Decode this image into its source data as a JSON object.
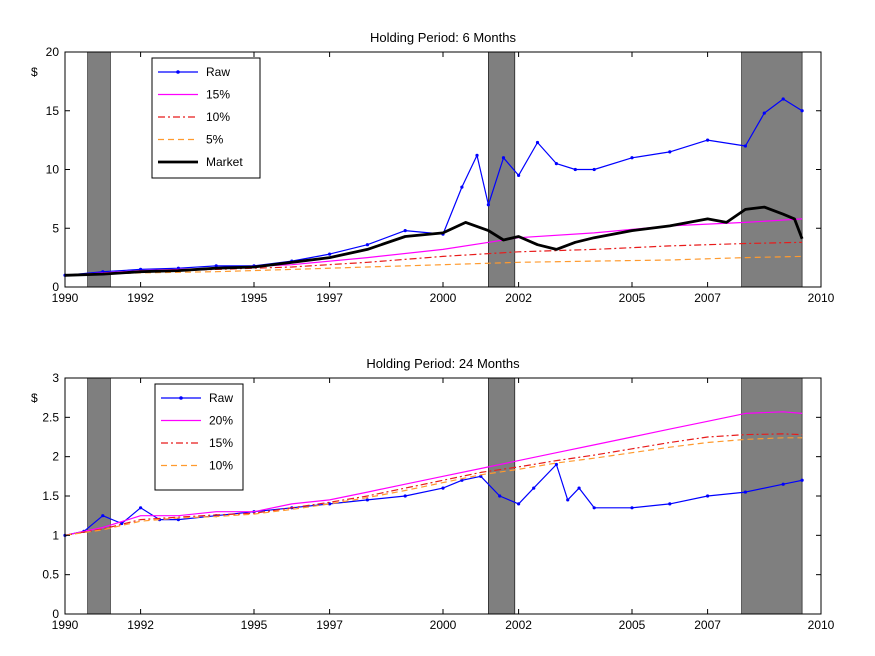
{
  "chart_data": [
    {
      "type": "line",
      "title": "Holding Period: 6 Months",
      "ylabel": "$",
      "xlabel": "",
      "xlim": [
        1990,
        2010
      ],
      "ylim": [
        0,
        20
      ],
      "x_ticks": [
        "1990",
        "1992",
        "1995",
        "1997",
        "2000",
        "2002",
        "2005",
        "2007",
        "2010"
      ],
      "y_ticks": [
        "0",
        "5",
        "10",
        "15",
        "20"
      ],
      "grid": false,
      "legend_position": "top-left",
      "recession_shading": [
        [
          1990.6,
          1991.2
        ],
        [
          2001.2,
          2001.9
        ],
        [
          2007.9,
          2009.5
        ]
      ],
      "series": [
        {
          "name": "Raw",
          "color": "#0000ff",
          "style": "solid-dot",
          "x": [
            1990,
            1991,
            1992,
            1993,
            1994,
            1995,
            1996,
            1997,
            1998,
            1999,
            2000,
            2000.5,
            2000.9,
            2001.2,
            2001.6,
            2002,
            2002.5,
            2003,
            2003.5,
            2004,
            2005,
            2006,
            2007,
            2008,
            2008.5,
            2009,
            2009.5
          ],
          "values": [
            1.0,
            1.3,
            1.5,
            1.6,
            1.8,
            1.8,
            2.2,
            2.8,
            3.6,
            4.8,
            4.5,
            8.5,
            11.2,
            7.0,
            11.0,
            9.5,
            12.3,
            10.5,
            10.0,
            10.0,
            11.0,
            11.5,
            12.5,
            12.0,
            14.8,
            16.0,
            15.0
          ]
        },
        {
          "name": "15%",
          "color": "#ff00ff",
          "style": "solid",
          "x": [
            1990,
            1992,
            1994,
            1996,
            1998,
            2000,
            2002,
            2004,
            2006,
            2008,
            2009.5
          ],
          "values": [
            1.0,
            1.4,
            1.6,
            1.9,
            2.5,
            3.2,
            4.2,
            4.6,
            5.2,
            5.5,
            5.8
          ]
        },
        {
          "name": "10%",
          "color": "#e81b1b",
          "style": "dashdot",
          "x": [
            1990,
            1992,
            1994,
            1996,
            1998,
            2000,
            2002,
            2004,
            2006,
            2008,
            2009.5
          ],
          "values": [
            1.0,
            1.3,
            1.5,
            1.7,
            2.1,
            2.6,
            3.0,
            3.2,
            3.5,
            3.7,
            3.8
          ]
        },
        {
          "name": "5%",
          "color": "#ff9a2e",
          "style": "dashed",
          "x": [
            1990,
            1992,
            1994,
            1996,
            1998,
            2000,
            2002,
            2004,
            2006,
            2008,
            2009.5
          ],
          "values": [
            1.0,
            1.2,
            1.3,
            1.5,
            1.7,
            1.9,
            2.1,
            2.2,
            2.3,
            2.5,
            2.6
          ]
        },
        {
          "name": "Market",
          "color": "#000000",
          "style": "thick",
          "x": [
            1990,
            1991,
            1992,
            1993,
            1994,
            1995,
            1996,
            1997,
            1998,
            1999,
            2000,
            2000.6,
            2001.2,
            2001.6,
            2002,
            2002.5,
            2003,
            2003.5,
            2004,
            2005,
            2006,
            2007,
            2007.5,
            2008,
            2008.5,
            2009,
            2009.3,
            2009.5
          ],
          "values": [
            1.0,
            1.1,
            1.3,
            1.4,
            1.6,
            1.7,
            2.1,
            2.5,
            3.2,
            4.3,
            4.6,
            5.5,
            4.8,
            4.0,
            4.3,
            3.6,
            3.2,
            3.8,
            4.2,
            4.8,
            5.2,
            5.8,
            5.5,
            6.6,
            6.8,
            6.2,
            5.8,
            4.1
          ]
        }
      ]
    },
    {
      "type": "line",
      "title": "Holding Period: 24 Months",
      "ylabel": "$",
      "xlabel": "",
      "xlim": [
        1990,
        2010
      ],
      "ylim": [
        0,
        3
      ],
      "x_ticks": [
        "1990",
        "1992",
        "1995",
        "1997",
        "2000",
        "2002",
        "2005",
        "2007",
        "2010"
      ],
      "y_ticks": [
        "0",
        "0.5",
        "1",
        "1.5",
        "2",
        "2.5",
        "3"
      ],
      "grid": false,
      "legend_position": "top-left",
      "recession_shading": [
        [
          1990.6,
          1991.2
        ],
        [
          2001.2,
          2001.9
        ],
        [
          2007.9,
          2009.5
        ]
      ],
      "series": [
        {
          "name": "Raw",
          "color": "#0000ff",
          "style": "solid-dot",
          "x": [
            1990,
            1990.5,
            1991,
            1991.5,
            1992,
            1992.5,
            1993,
            1994,
            1995,
            1996,
            1997,
            1998,
            1999,
            2000,
            2000.5,
            2001,
            2001.5,
            2002,
            2002.4,
            2003,
            2003.3,
            2003.6,
            2004,
            2005,
            2006,
            2007,
            2008,
            2009,
            2009.5
          ],
          "values": [
            1.0,
            1.05,
            1.25,
            1.15,
            1.35,
            1.2,
            1.2,
            1.25,
            1.3,
            1.35,
            1.4,
            1.45,
            1.5,
            1.6,
            1.7,
            1.75,
            1.5,
            1.4,
            1.6,
            1.9,
            1.45,
            1.6,
            1.35,
            1.35,
            1.4,
            1.5,
            1.55,
            1.65,
            1.7
          ]
        },
        {
          "name": "20%",
          "color": "#ff00ff",
          "style": "solid",
          "x": [
            1990,
            1991,
            1992,
            1993,
            1994,
            1995,
            1996,
            1997,
            1998,
            1999,
            2000,
            2001,
            2002,
            2003,
            2004,
            2005,
            2006,
            2007,
            2008,
            2009,
            2009.5
          ],
          "values": [
            1.0,
            1.1,
            1.25,
            1.25,
            1.3,
            1.3,
            1.4,
            1.45,
            1.55,
            1.65,
            1.75,
            1.85,
            1.95,
            2.05,
            2.15,
            2.25,
            2.35,
            2.45,
            2.55,
            2.57,
            2.55
          ]
        },
        {
          "name": "15%",
          "color": "#e81b1b",
          "style": "dashdot",
          "x": [
            1990,
            1991,
            1992,
            1993,
            1994,
            1995,
            1996,
            1997,
            1998,
            1999,
            2000,
            2001,
            2002,
            2003,
            2004,
            2005,
            2006,
            2007,
            2008,
            2009,
            2009.5
          ],
          "values": [
            1.0,
            1.08,
            1.2,
            1.23,
            1.26,
            1.28,
            1.35,
            1.42,
            1.5,
            1.6,
            1.7,
            1.8,
            1.87,
            1.95,
            2.02,
            2.1,
            2.18,
            2.25,
            2.28,
            2.29,
            2.28
          ]
        },
        {
          "name": "10%",
          "color": "#ff9a2e",
          "style": "dashed",
          "x": [
            1990,
            1991,
            1992,
            1993,
            1994,
            1995,
            1996,
            1997,
            1998,
            1999,
            2000,
            2001,
            2002,
            2003,
            2004,
            2005,
            2006,
            2007,
            2008,
            2009,
            2009.5
          ],
          "values": [
            1.0,
            1.07,
            1.18,
            1.22,
            1.24,
            1.27,
            1.33,
            1.4,
            1.48,
            1.57,
            1.67,
            1.77,
            1.84,
            1.92,
            1.98,
            2.05,
            2.12,
            2.18,
            2.22,
            2.24,
            2.24
          ]
        }
      ]
    }
  ]
}
